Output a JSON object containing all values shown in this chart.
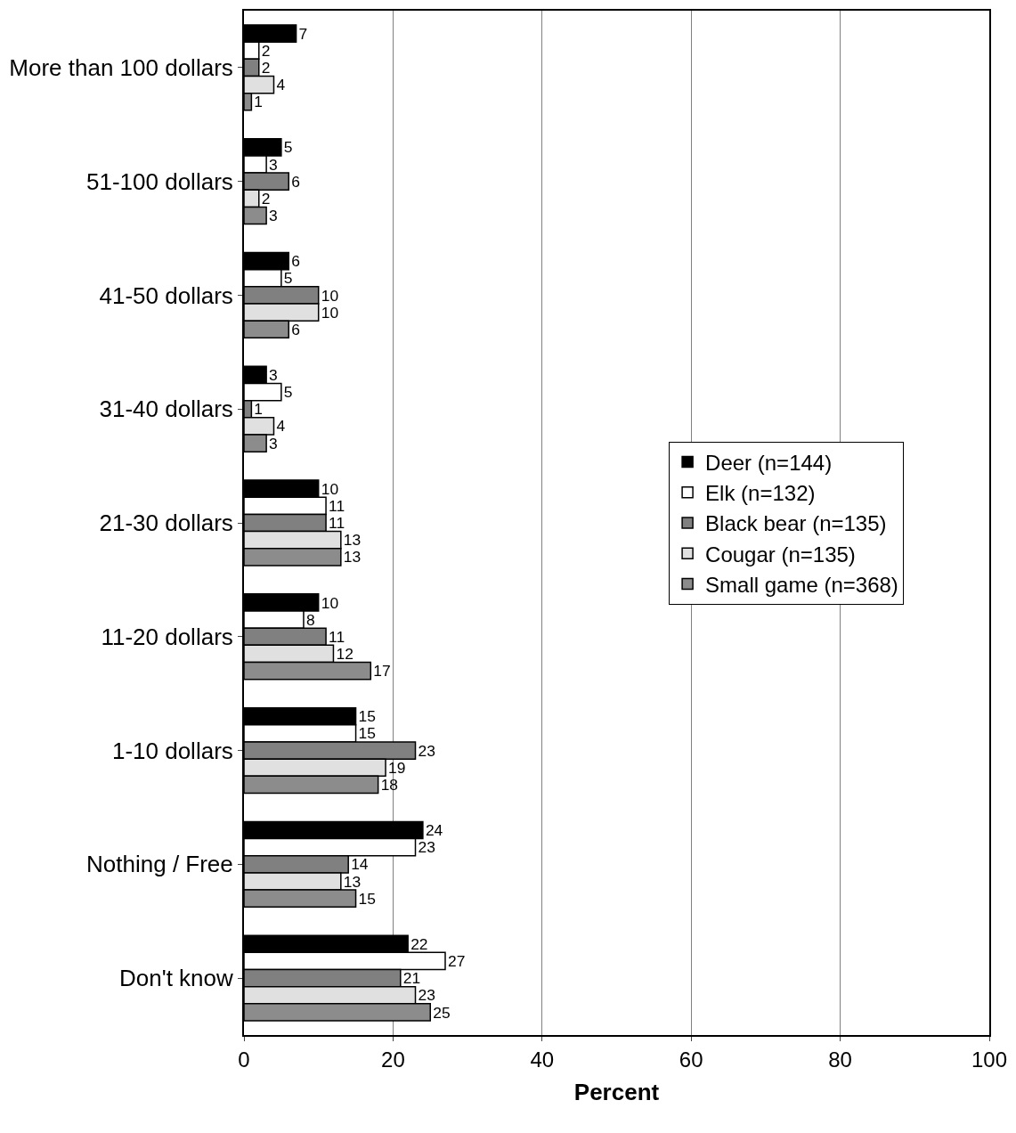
{
  "chart_data": {
    "type": "bar",
    "orientation": "horizontal",
    "xlabel": "Percent",
    "categories": [
      "More than 100 dollars",
      "51-100 dollars",
      "41-50 dollars",
      "31-40 dollars",
      "21-30 dollars",
      "11-20 dollars",
      "1-10 dollars",
      "Nothing / Free",
      "Don't know"
    ],
    "series": [
      {
        "name": "Deer (n=144)",
        "color": "#000000",
        "values": [
          7,
          5,
          6,
          3,
          10,
          10,
          15,
          24,
          22
        ]
      },
      {
        "name": "Elk (n=132)",
        "color": "#ffffff",
        "values": [
          2,
          3,
          5,
          5,
          11,
          8,
          15,
          23,
          27
        ]
      },
      {
        "name": "Black bear (n=135)",
        "color": "#808080",
        "values": [
          2,
          6,
          10,
          1,
          11,
          11,
          23,
          14,
          21
        ]
      },
      {
        "name": "Cougar (n=135)",
        "color": "#e0e0e0",
        "values": [
          4,
          2,
          10,
          4,
          13,
          12,
          19,
          13,
          23
        ]
      },
      {
        "name": "Small game (n=368)",
        "color": "#8c8c8c",
        "values": [
          1,
          3,
          6,
          3,
          13,
          17,
          18,
          15,
          25
        ]
      }
    ],
    "xlim": [
      0,
      100
    ],
    "xticks": [
      0,
      20,
      40,
      60,
      80,
      100
    ],
    "grid": "x",
    "legend": "right",
    "data_labels": true
  }
}
